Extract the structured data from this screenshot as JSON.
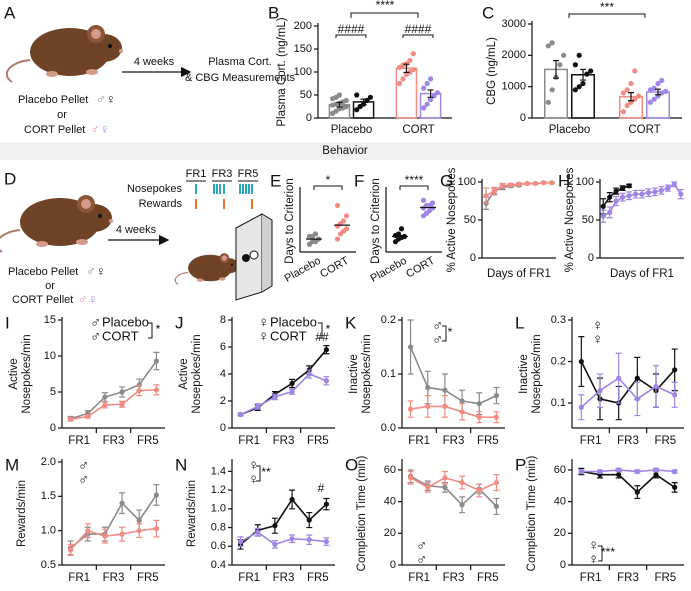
{
  "section_title": "Behavior",
  "schematic_a": {
    "label": "A",
    "arrow_label": "4 weeks",
    "outcome": [
      "Plasma Cort.",
      "& CBG Measurements"
    ],
    "or": "or",
    "groups": [
      {
        "name": "Placebo Pellet",
        "symbols": [
          "♂",
          "♀"
        ]
      },
      {
        "name": "CORT Pellet",
        "symbols": [
          "♂",
          "♀"
        ]
      }
    ]
  },
  "schematic_d": {
    "label": "D",
    "arrow_label": "4 weeks",
    "schedule": [
      "FR1",
      "FR3",
      "FR5"
    ],
    "rows": [
      "Nosepokes",
      "Rewards"
    ],
    "or": "or",
    "groups": [
      {
        "name": "Placebo Pellet",
        "symbols": [
          "♂",
          "♀"
        ]
      },
      {
        "name": "CORT Pellet",
        "symbols": [
          "♂",
          "♀"
        ]
      }
    ]
  },
  "chart_data": [
    {
      "panel": "B",
      "type": "bar",
      "ylabel": "Plasma Cort. (ng/mL)",
      "categories": [
        "Placebo",
        "CORT"
      ],
      "ylim": [
        0,
        200
      ],
      "yticks": [
        0,
        50,
        100,
        150,
        200
      ],
      "series": [
        {
          "colors": [
            "#8a8a8a",
            "#f28b82"
          ],
          "values": [
            29,
            108
          ],
          "errors": [
            5,
            9
          ],
          "points": [
            [
              10,
              15,
              20,
              22,
              25,
              28,
              30,
              32,
              35,
              38,
              42,
              45,
              50
            ],
            [
              75,
              85,
              95,
              100,
              105,
              110,
              115,
              118,
              125,
              140
            ]
          ]
        },
        {
          "colors": [
            "#111111",
            "#9f86e6"
          ],
          "values": [
            35,
            53
          ],
          "errors": [
            6,
            8
          ],
          "points": [
            [
              18,
              25,
              30,
              38,
              45,
              50
            ],
            [
              22,
              30,
              40,
              48,
              55,
              65,
              75,
              85
            ]
          ]
        }
      ],
      "annotations": [
        "****",
        "####",
        "####"
      ]
    },
    {
      "panel": "C",
      "type": "bar",
      "ylabel": "CBG (ng/mL)",
      "categories": [
        "Placebo",
        "CORT"
      ],
      "ylim": [
        0,
        3000
      ],
      "yticks": [
        0,
        1000,
        2000,
        3000
      ],
      "series": [
        {
          "colors": [
            "#8a8a8a",
            "#f28b82"
          ],
          "values": [
            1550,
            680
          ],
          "errors": [
            280,
            130
          ],
          "points": [
            [
              500,
              900,
              1300,
              1700,
              2000,
              2300,
              2400
            ],
            [
              200,
              400,
              500,
              600,
              700,
              800,
              900,
              1100,
              1500
            ]
          ]
        },
        {
          "colors": [
            "#111111",
            "#9f86e6"
          ],
          "values": [
            1380,
            830
          ],
          "errors": [
            170,
            90
          ],
          "points": [
            [
              900,
              1000,
              1100,
              1400,
              1500,
              1700,
              2000
            ],
            [
              500,
              600,
              700,
              800,
              850,
              900,
              950,
              1100,
              1200
            ]
          ]
        }
      ],
      "annotations": [
        "***"
      ]
    },
    {
      "panel": "E",
      "type": "strip",
      "ylabel": "Days to Criterion",
      "categories": [
        "Placebo",
        "CORT"
      ],
      "ylim": [
        0,
        12
      ],
      "colors": [
        "#8a8a8a",
        "#f28b82"
      ],
      "points": [
        [
          1.5,
          2,
          2,
          2.5,
          3,
          3,
          3.5,
          2.5
        ],
        [
          2.5,
          3.5,
          4,
          4.5,
          5,
          5.5,
          6,
          7,
          9
        ]
      ],
      "means": [
        2.5,
        5.2
      ],
      "annotations": [
        "*"
      ]
    },
    {
      "panel": "F",
      "type": "strip",
      "ylabel": "Days to Criterion",
      "categories": [
        "Placebo",
        "CORT"
      ],
      "ylim": [
        0,
        12
      ],
      "colors": [
        "#111111",
        "#9f86e6"
      ],
      "points": [
        [
          2,
          2.5,
          2.8,
          3,
          3.2,
          3.5,
          4.5
        ],
        [
          7,
          7.5,
          8,
          8.5,
          8.5,
          9,
          9,
          9.5,
          10
        ]
      ],
      "means": [
        3,
        8.6
      ],
      "annotations": [
        "****"
      ]
    },
    {
      "panel": "G",
      "type": "line",
      "ylabel": "% Active Nosepokes",
      "xlabel": "Days of FR1",
      "x": [
        1,
        2,
        3,
        4,
        5,
        6,
        7,
        8,
        9
      ],
      "xlim": [
        0.5,
        9.5
      ],
      "ylim": [
        0,
        100
      ],
      "yticks": [
        0,
        50,
        100
      ],
      "series": [
        {
          "color": "#8a8a8a",
          "values": [
            72,
            88,
            93,
            95,
            96,
            null,
            null,
            null,
            null
          ],
          "errors": [
            8,
            4,
            3,
            2,
            2,
            null,
            null,
            null,
            null
          ]
        },
        {
          "color": "#f28b82",
          "values": [
            82,
            88,
            95,
            96,
            97,
            98,
            98,
            99,
            99
          ],
          "errors": [
            10,
            5,
            3,
            2,
            2,
            1,
            1,
            1,
            1
          ]
        }
      ]
    },
    {
      "panel": "H",
      "type": "line",
      "ylabel": "% Active Nosepokes",
      "xlabel": "Days of FR1",
      "x": [
        1,
        2,
        3,
        4,
        5,
        6,
        7,
        8,
        9,
        10,
        11,
        12,
        13
      ],
      "xlim": [
        0.5,
        13.5
      ],
      "ylim": [
        0,
        100
      ],
      "yticks": [
        0,
        50,
        100
      ],
      "series": [
        {
          "color": "#111111",
          "values": [
            68,
            80,
            88,
            92,
            95,
            null,
            null,
            null,
            null,
            null,
            null,
            null,
            null
          ],
          "errors": [
            10,
            6,
            4,
            3,
            2,
            null,
            null,
            null,
            null,
            null,
            null,
            null,
            null
          ]
        },
        {
          "color": "#9f86e6",
          "values": [
            55,
            60,
            75,
            80,
            82,
            84,
            84,
            86,
            87,
            89,
            92,
            97,
            84
          ],
          "errors": [
            8,
            7,
            6,
            5,
            5,
            5,
            5,
            5,
            5,
            5,
            4,
            3,
            6
          ]
        }
      ]
    },
    {
      "panel": "I",
      "type": "line",
      "ylabel": [
        "Active",
        "Nosepokes/min"
      ],
      "categories": [
        null,
        null,
        null,
        null,
        null,
        null
      ],
      "x_groups": [
        "FR1",
        "FR3",
        "FR5"
      ],
      "ylim": [
        0,
        15
      ],
      "yticks": [
        0,
        5,
        10,
        15
      ],
      "series": [
        {
          "name": "Placebo",
          "symbol": "♂",
          "color": "#8a8a8a",
          "values": [
            1.3,
            2,
            4.3,
            5,
            6,
            9.3
          ],
          "errors": [
            0.3,
            0.4,
            0.6,
            0.7,
            0.8,
            1.2
          ]
        },
        {
          "name": "CORT",
          "symbol": "♂",
          "color": "#f28b82",
          "values": [
            1.2,
            1.6,
            3.2,
            3.3,
            5.2,
            5.3
          ],
          "errors": [
            0.2,
            0.2,
            0.4,
            0.4,
            0.7,
            0.7
          ]
        }
      ],
      "annotations": [
        "*"
      ]
    },
    {
      "panel": "J",
      "type": "line",
      "ylabel": [
        "Active",
        "Nosepokes/min"
      ],
      "categories": [
        null,
        null,
        null,
        null,
        null,
        null
      ],
      "x_groups": [
        "FR1",
        "FR3",
        "FR5"
      ],
      "ylim": [
        0,
        8
      ],
      "yticks": [
        0,
        2,
        4,
        6,
        8
      ],
      "series": [
        {
          "name": "Placebo",
          "symbol": "♀",
          "color": "#111111",
          "values": [
            1,
            1.5,
            2.5,
            3.3,
            4.3,
            5.8
          ],
          "errors": [
            0.1,
            0.2,
            0.2,
            0.3,
            0.3,
            0.3
          ]
        },
        {
          "name": "CORT",
          "symbol": "♀",
          "color": "#9f86e6",
          "values": [
            1,
            1.6,
            2.3,
            2.7,
            4,
            3.5
          ],
          "errors": [
            0.1,
            0.2,
            0.2,
            0.2,
            0.3,
            0.3
          ]
        }
      ],
      "annotations": [
        "*",
        "##"
      ]
    },
    {
      "panel": "K",
      "type": "line",
      "ylabel": [
        "Inactive",
        "Nosepokes/min"
      ],
      "categories": [
        null,
        null,
        null,
        null,
        null,
        null
      ],
      "x_groups": [
        "FR1",
        "FR3",
        "FR5"
      ],
      "ylim": [
        0,
        0.2
      ],
      "yticks": [
        {
          "value": 0,
          "label": "0.0"
        },
        0.1,
        0.2
      ],
      "series": [
        {
          "symbol": "♂",
          "color": "#8a8a8a",
          "values": [
            0.15,
            0.075,
            0.07,
            0.05,
            0.045,
            0.06
          ],
          "errors": [
            0.05,
            0.03,
            0.03,
            0.02,
            0.02,
            0.015
          ]
        },
        {
          "symbol": "♂",
          "color": "#f28b82",
          "values": [
            0.035,
            0.04,
            0.04,
            0.03,
            0.02,
            0.02
          ],
          "errors": [
            0.015,
            0.02,
            0.02,
            0.015,
            0.01,
            0.01
          ]
        }
      ],
      "annotations": [
        "*"
      ]
    },
    {
      "panel": "L",
      "type": "line",
      "ylabel": [
        "Inactive",
        "Nosepokes/min"
      ],
      "categories": [
        null,
        null,
        null,
        null,
        null,
        null
      ],
      "x_groups": [
        "FR1",
        "FR3",
        "FR5"
      ],
      "ylim": [
        0.04,
        0.3
      ],
      "yticks": [
        0.1,
        0.2,
        0.3
      ],
      "series": [
        {
          "symbol": "♀",
          "color": "#111111",
          "values": [
            0.2,
            0.11,
            0.1,
            0.16,
            0.13,
            0.18
          ],
          "errors": [
            0.06,
            0.05,
            0.04,
            0.05,
            0.04,
            0.05
          ]
        },
        {
          "symbol": "♀",
          "color": "#9f86e6",
          "values": [
            0.09,
            0.13,
            0.16,
            0.11,
            0.14,
            0.12
          ],
          "errors": [
            0.03,
            0.04,
            0.06,
            0.04,
            0.05,
            0.03
          ]
        }
      ]
    },
    {
      "panel": "M",
      "type": "line",
      "ylabel": "Rewards/min",
      "categories": [
        null,
        null,
        null,
        null,
        null,
        null
      ],
      "x_groups": [
        "FR1",
        "FR3",
        "FR5"
      ],
      "ylim": [
        0.5,
        2.0
      ],
      "yticks": [
        0.5,
        {
          "value": 1,
          "label": "1.0"
        },
        1.5,
        {
          "value": 2,
          "label": "2.0"
        }
      ],
      "series": [
        {
          "symbol": "♂",
          "color": "#8a8a8a",
          "values": [
            0.75,
            0.95,
            0.95,
            1.4,
            1.15,
            1.52
          ],
          "errors": [
            0.1,
            0.1,
            0.1,
            0.15,
            0.15,
            0.15
          ]
        },
        {
          "symbol": "♂",
          "color": "#f28b82",
          "values": [
            0.72,
            1.0,
            0.92,
            0.95,
            1.0,
            1.03
          ],
          "errors": [
            0.08,
            0.1,
            0.1,
            0.1,
            0.1,
            0.12
          ]
        }
      ]
    },
    {
      "panel": "N",
      "type": "line",
      "ylabel": "Rewards/min",
      "categories": [
        null,
        null,
        null,
        null,
        null,
        null
      ],
      "x_groups": [
        "FR1",
        "FR3",
        "FR5"
      ],
      "ylim": [
        0.4,
        1.5
      ],
      "yticks": [
        0.4,
        0.6,
        0.8,
        {
          "value": 1,
          "label": "1.0"
        },
        1.2,
        1.4
      ],
      "series": [
        {
          "symbol": "♀",
          "color": "#111111",
          "values": [
            0.62,
            0.77,
            0.82,
            1.1,
            0.88,
            1.05
          ],
          "errors": [
            0.05,
            0.06,
            0.08,
            0.1,
            0.08,
            0.06
          ]
        },
        {
          "symbol": "♀",
          "color": "#9f86e6",
          "values": [
            0.65,
            0.75,
            0.62,
            0.68,
            0.67,
            0.65
          ],
          "errors": [
            0.05,
            0.04,
            0.04,
            0.04,
            0.05,
            0.04
          ]
        }
      ],
      "annotations": [
        "**",
        "#"
      ]
    },
    {
      "panel": "O",
      "type": "line",
      "ylabel": "Completion Time (min)",
      "categories": [
        null,
        null,
        null,
        null,
        null,
        null
      ],
      "x_groups": [
        "FR1",
        "FR3",
        "FR5"
      ],
      "ylim": [
        0,
        65
      ],
      "yticks": [
        0,
        20,
        40,
        60
      ],
      "series": [
        {
          "symbol": "♂",
          "color": "#8a8a8a",
          "values": [
            56,
            50,
            49,
            38,
            48,
            37
          ],
          "errors": [
            4,
            3,
            3,
            5,
            3,
            5
          ]
        },
        {
          "symbol": "♂",
          "color": "#f28b82",
          "values": [
            55,
            49,
            55,
            52,
            47,
            52
          ],
          "errors": [
            4,
            3,
            4,
            4,
            4,
            5
          ]
        }
      ]
    },
    {
      "panel": "P",
      "type": "line",
      "ylabel": "Completion Time (min)",
      "categories": [
        null,
        null,
        null,
        null,
        null,
        null
      ],
      "x_groups": [
        "FR1",
        "FR3",
        "FR5"
      ],
      "ylim": [
        0,
        65
      ],
      "yticks": [
        0,
        20,
        40,
        60
      ],
      "series": [
        {
          "symbol": "♀",
          "color": "#111111",
          "values": [
            59,
            57,
            57,
            46,
            57,
            49
          ],
          "errors": [
            2,
            2,
            2,
            4,
            2,
            3
          ]
        },
        {
          "symbol": "♀",
          "color": "#9f86e6",
          "values": [
            59,
            59,
            60,
            59,
            60,
            59
          ],
          "errors": [
            1,
            1,
            1,
            1,
            1,
            1
          ]
        }
      ],
      "annotations": [
        "***"
      ]
    }
  ]
}
